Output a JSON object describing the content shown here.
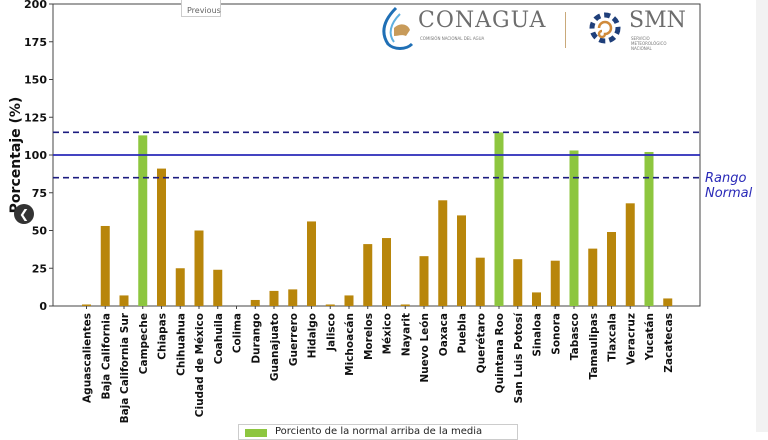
{
  "nav": {
    "previous_label": "Previous",
    "back_icon": "chevron-left-icon"
  },
  "logos": {
    "conagua": "CONAGUA",
    "conagua_sub": "COMISIÓN NACIONAL DEL AGUA",
    "smn": "SMN",
    "smn_sub": "SERVICIO METEOROLÓGICO NACIONAL"
  },
  "chart_data": {
    "type": "bar",
    "ylabel": "Porcentaje (%)",
    "xlabel": "",
    "ylim": [
      0,
      200
    ],
    "yticks": [
      0,
      25,
      50,
      75,
      100,
      125,
      150,
      175,
      200
    ],
    "categories": [
      "Aguascalientes",
      "Baja California",
      "Baja California Sur",
      "Campeche",
      "Chiapas",
      "Chihuahua",
      "Ciudad de México",
      "Coahuila",
      "Colima",
      "Durango",
      "Guanajuato",
      "Guerrero",
      "Hidalgo",
      "Jalisco",
      "Michoacán",
      "Morelos",
      "México",
      "Nayarit",
      "Nuevo León",
      "Oaxaca",
      "Puebla",
      "Querétaro",
      "Quintana Roo",
      "San Luis Potosí",
      "Sinaloa",
      "Sonora",
      "Tabasco",
      "Tamaulipas",
      "Tlaxcala",
      "Veracruz",
      "Yucatán",
      "Zacatecas"
    ],
    "values": [
      1,
      53,
      7,
      113,
      91,
      25,
      50,
      24,
      0,
      4,
      10,
      11,
      56,
      1,
      7,
      41,
      45,
      1,
      33,
      70,
      60,
      32,
      115,
      31,
      9,
      30,
      103,
      38,
      49,
      68,
      102,
      5
    ],
    "reference_lines": {
      "normal": 100,
      "range_low": 85,
      "range_high": 115,
      "range_label": [
        "Rango",
        "Normal"
      ]
    },
    "colors": {
      "above": "#8dc63f",
      "below": "#b8860b",
      "normal_line": "#2a2ab8",
      "range_line": "#1c1c80"
    },
    "legend": {
      "label": "Porciento de la normal arriba de la media",
      "placement": "bottom"
    }
  }
}
